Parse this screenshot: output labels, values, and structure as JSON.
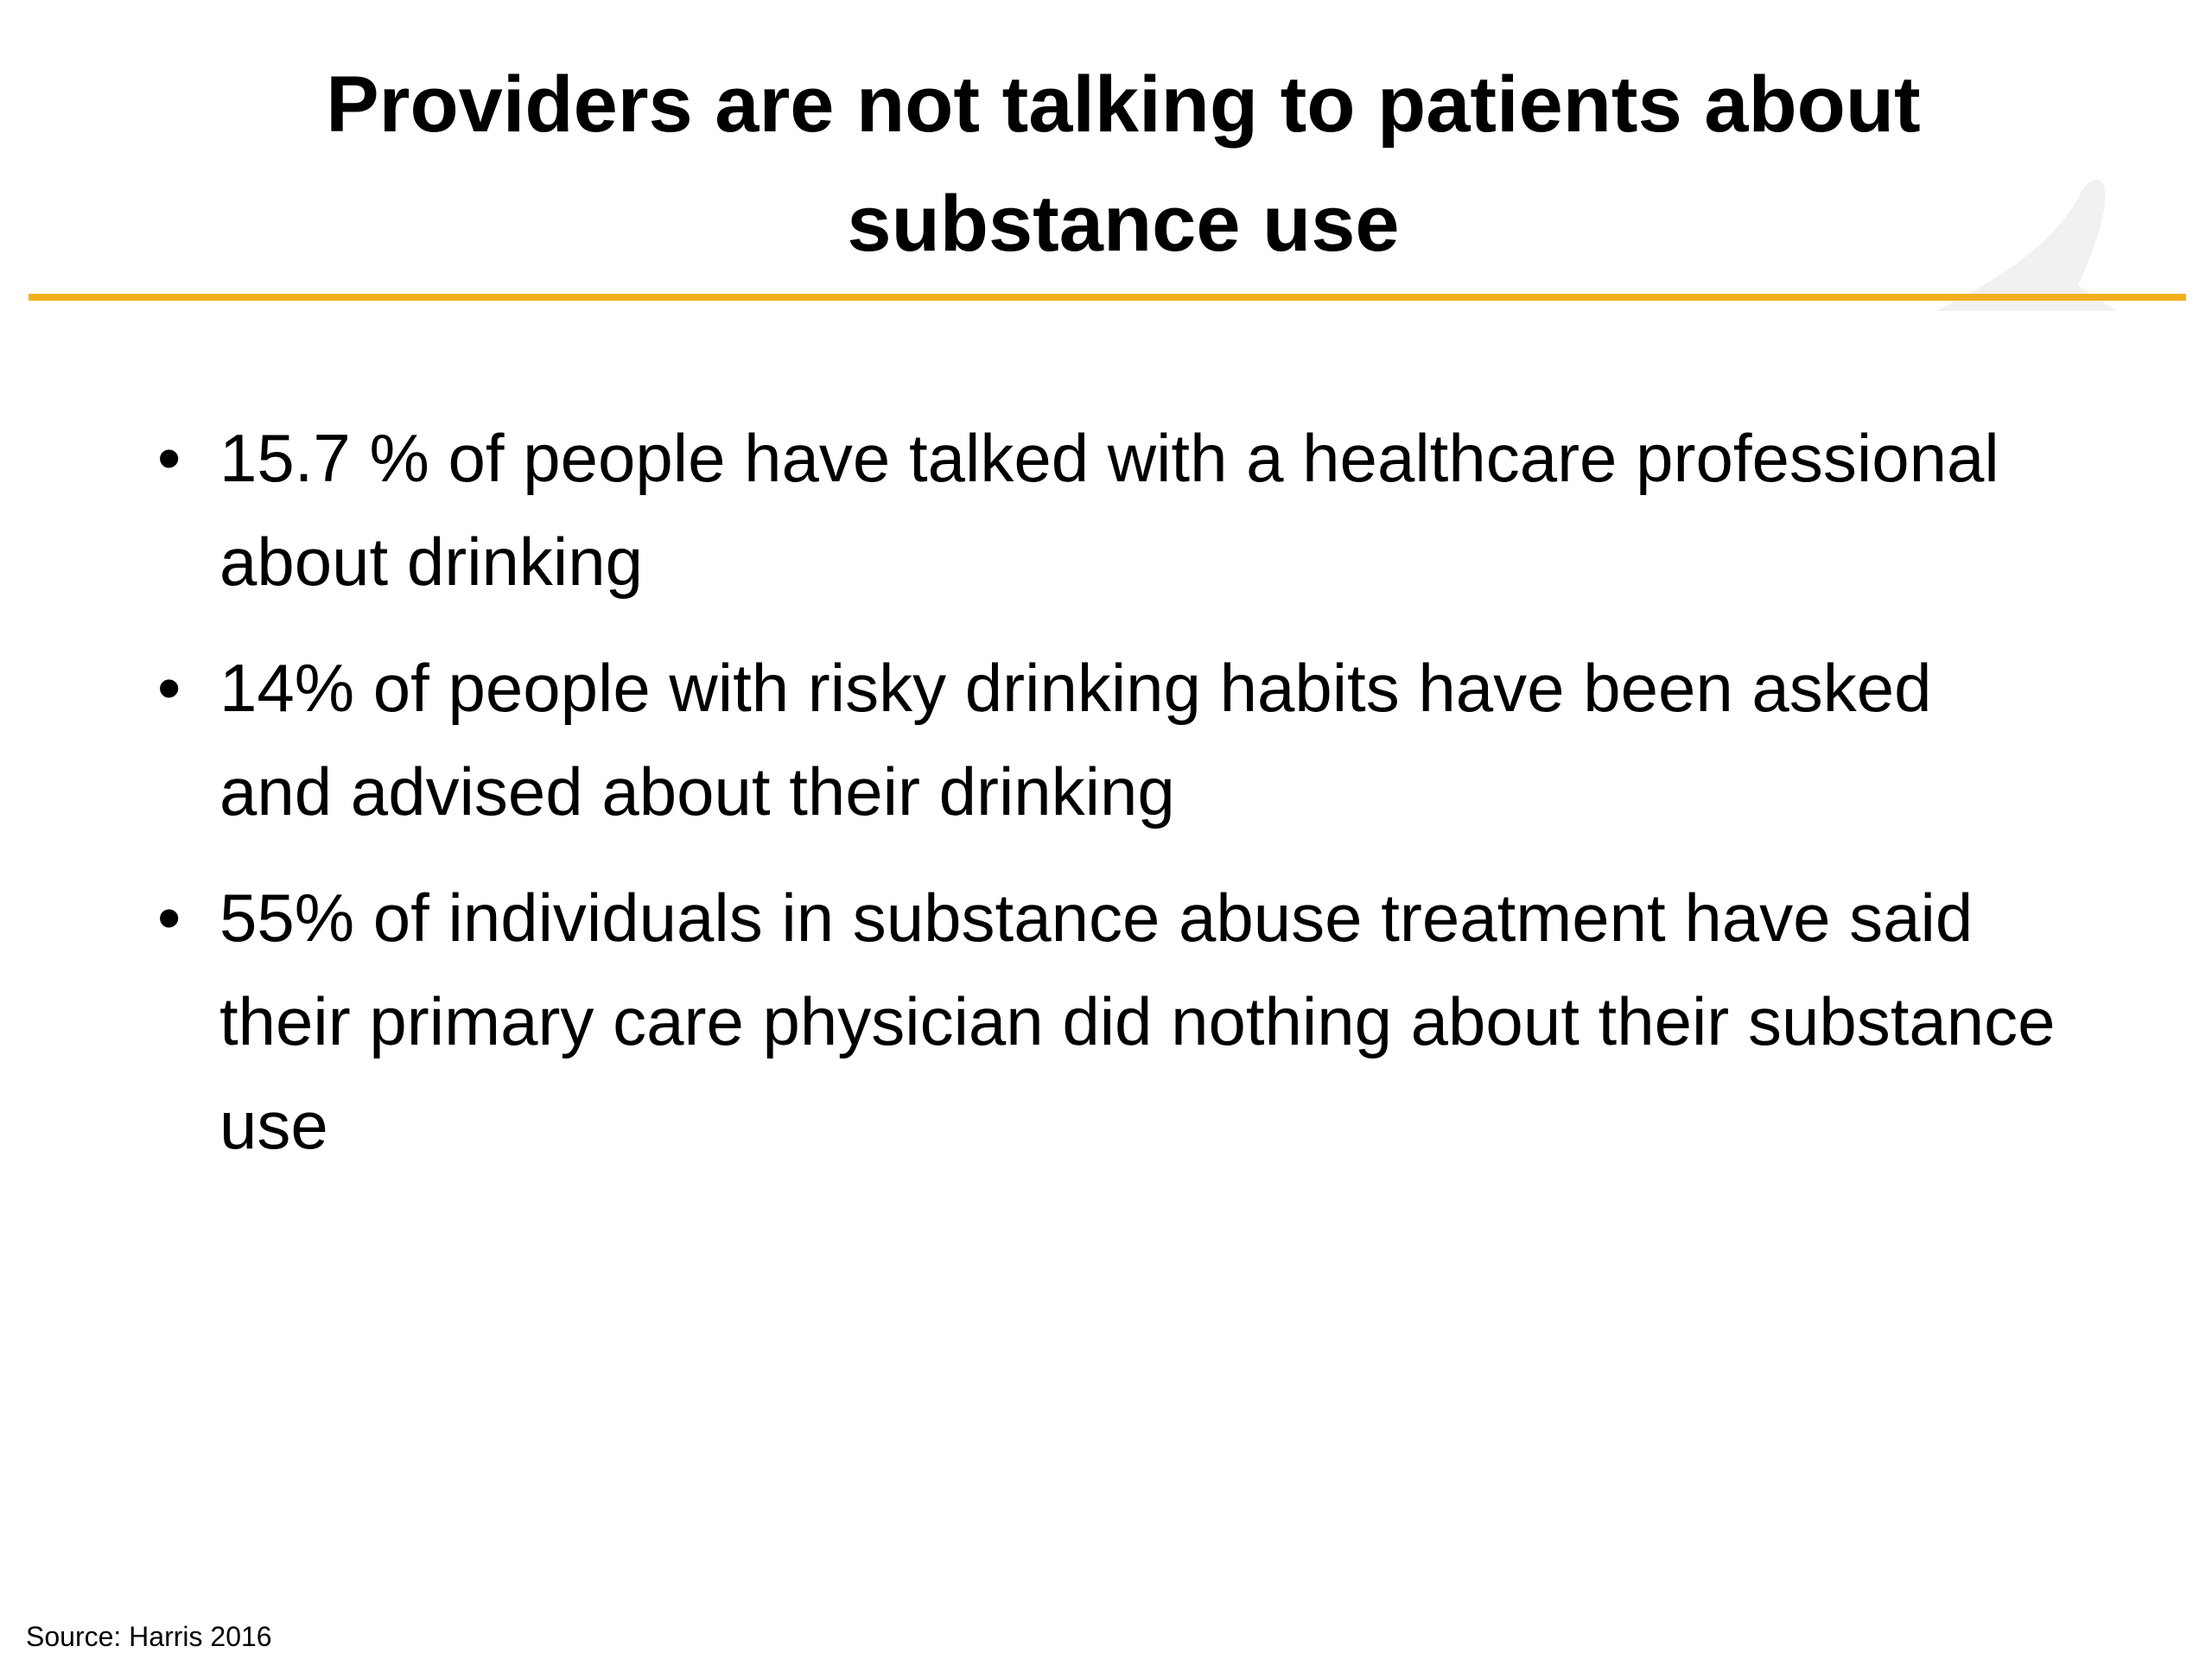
{
  "header": {
    "title": "Providers are not talking to patients about substance use"
  },
  "bullets": [
    "15.7 % of people have talked with a healthcare professional about drinking",
    "14% of people with risky drinking habits have been asked and advised about their drinking",
    "55% of individuals in substance abuse treatment have said their primary care physician did nothing about their substance use"
  ],
  "footer": {
    "source": "Source: Harris 2016"
  }
}
